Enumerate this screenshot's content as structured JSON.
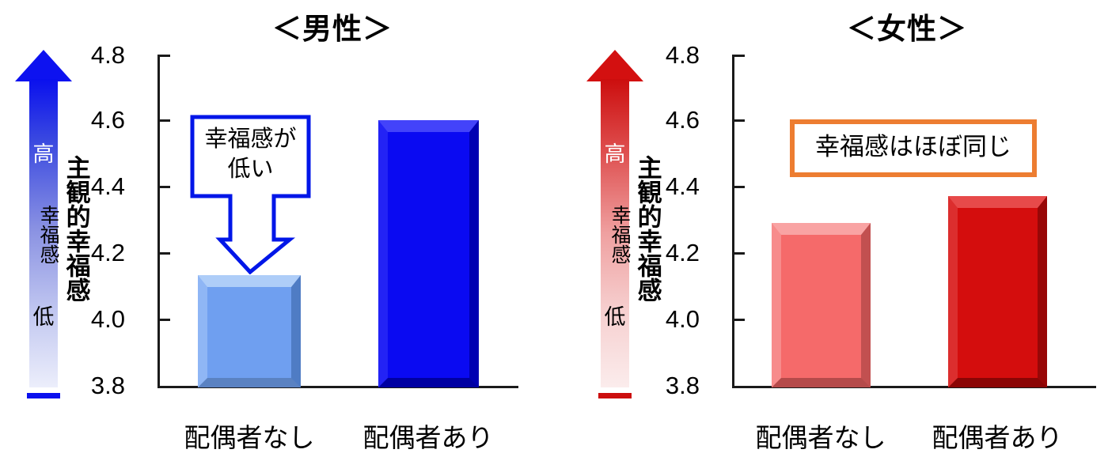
{
  "page": {
    "background": "#ffffff"
  },
  "colors": {
    "male_accent": "#0016e8",
    "male_bar_no_spouse": "#6f9ff0",
    "male_bar_spouse": "#0a0af2",
    "female_bar_no_spouse": "#f56a6a",
    "female_bar_spouse": "#d40d0d",
    "female_annotation_border": "#ed7d31",
    "axis": "#000000"
  },
  "ui": {
    "axis_title": "主観的幸福感",
    "tick_labels": [
      "4.8",
      "4.6",
      "4.4",
      "4.2",
      "4.0",
      "3.8"
    ],
    "arrow": {
      "high": "高",
      "mid": "幸福感",
      "low": "低"
    },
    "male_annotation": {
      "line1": "幸福感が",
      "line2": "低い"
    },
    "female_annotation": "幸福感はほぼ同じ"
  },
  "chart_data": [
    {
      "type": "bar",
      "title": "＜男性＞",
      "categories": [
        "配偶者なし",
        "配偶者あり"
      ],
      "values": [
        4.14,
        4.61
      ],
      "ylabel": "主観的幸福感",
      "ylim": [
        3.8,
        4.8
      ],
      "yticks": [
        4.8,
        4.6,
        4.4,
        4.2,
        4.0,
        3.8
      ],
      "grid": false,
      "legend": "none",
      "annotation": "幸福感が低い",
      "side_scale_labels": [
        "高",
        "幸福感",
        "低"
      ],
      "bar_colors": [
        "#6f9ff0",
        "#0a0af2"
      ]
    },
    {
      "type": "bar",
      "title": "＜女性＞",
      "categories": [
        "配偶者なし",
        "配偶者あり"
      ],
      "values": [
        4.3,
        4.38
      ],
      "ylabel": "主観的幸福感",
      "ylim": [
        3.8,
        4.8
      ],
      "yticks": [
        4.8,
        4.6,
        4.4,
        4.2,
        4.0,
        3.8
      ],
      "grid": false,
      "legend": "none",
      "annotation": "幸福感はほぼ同じ",
      "side_scale_labels": [
        "高",
        "幸福感",
        "低"
      ],
      "bar_colors": [
        "#f56a6a",
        "#d40d0d"
      ]
    }
  ]
}
